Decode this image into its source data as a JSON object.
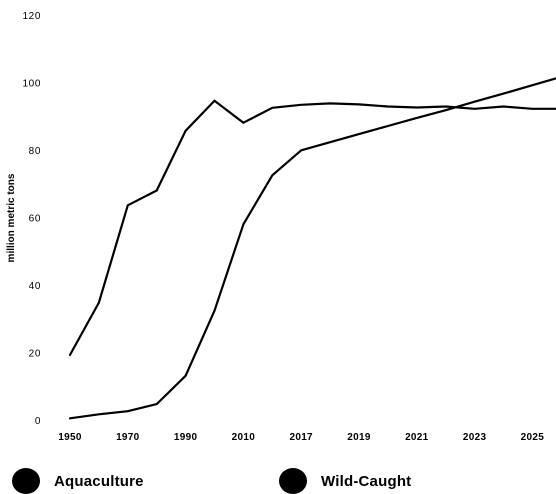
{
  "chart_data": {
    "type": "line",
    "title": "",
    "ylabel": "million metric tons",
    "xlabel": "",
    "ylim": [
      0,
      120
    ],
    "ytick_labels": [
      "0",
      "20",
      "40",
      "60",
      "80",
      "100",
      "120"
    ],
    "ytick_values": [
      0,
      20,
      40,
      60,
      80,
      100,
      120
    ],
    "categories": [
      "1950",
      "1960",
      "1970",
      "1980",
      "1990",
      "2000",
      "2010",
      "2015",
      "2017",
      "2018",
      "2019",
      "2020",
      "2021",
      "2022",
      "2023",
      "2024",
      "2025",
      "2026"
    ],
    "xtick_labels": [
      "1950",
      "1970",
      "1990",
      "2010",
      "2017",
      "2019",
      "2021",
      "2023",
      "2025"
    ],
    "grid": false,
    "legend_position": "bottom",
    "series": [
      {
        "name": "Aquaculture",
        "color": "#000000",
        "values": [
          0.5,
          1.7,
          2.6,
          4.7,
          13.1,
          32.4,
          58.0,
          72.5,
          79.9,
          82.3,
          84.7,
          87.1,
          89.5,
          91.8,
          94.3,
          96.7,
          99.2,
          101.7
        ]
      },
      {
        "name": "Wild-Caught",
        "color": "#000000",
        "values": [
          19.3,
          34.8,
          63.6,
          68.0,
          85.7,
          94.6,
          88.1,
          92.5,
          93.4,
          93.8,
          93.5,
          92.9,
          92.6,
          92.9,
          92.2,
          92.9,
          92.2,
          92.2
        ]
      }
    ]
  }
}
